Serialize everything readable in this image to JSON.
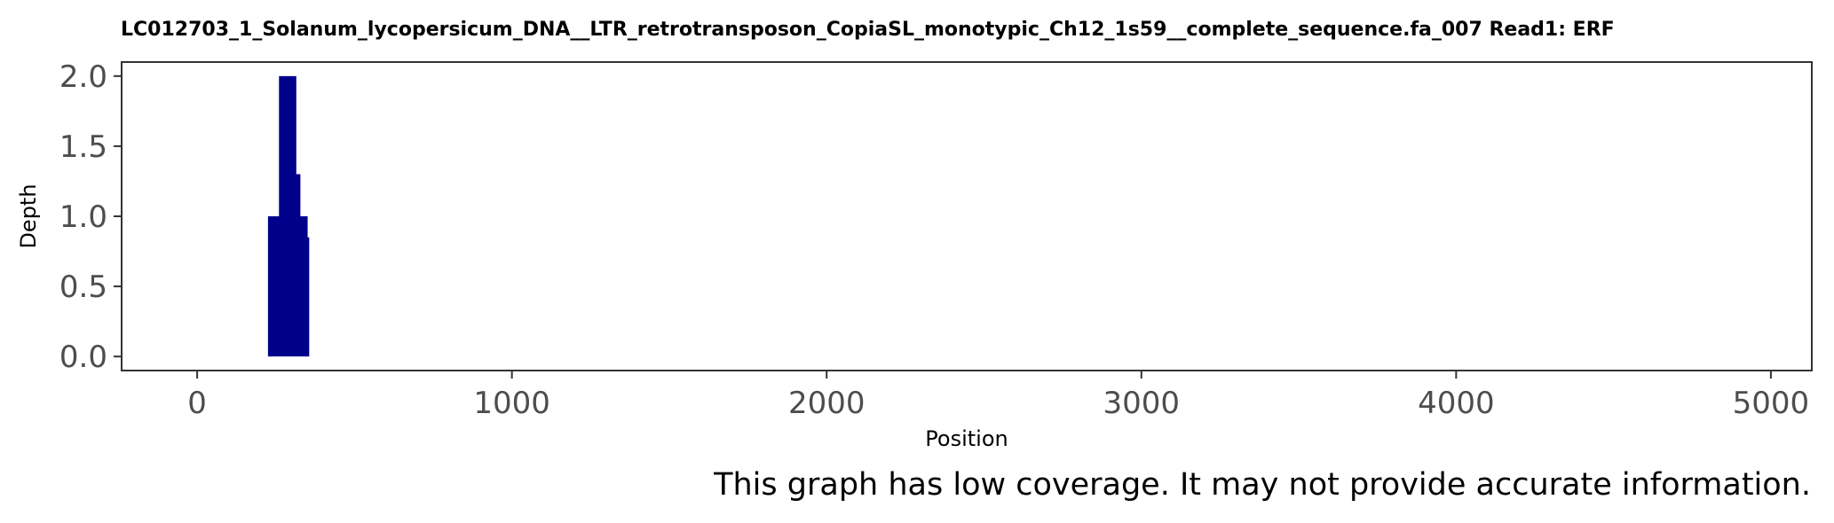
{
  "chart_data": {
    "type": "area",
    "title": "LC012703_1_Solanum_lycopersicum_DNA__LTR_retrotransposon_CopiaSL_monotypic_Ch12_1s59__complete_sequence.fa_007   Read1: ERF",
    "xlabel": "Position",
    "ylabel": "Depth",
    "xlim": [
      -240,
      5130
    ],
    "ylim": [
      -0.1,
      2.1
    ],
    "x_ticks": [
      "0",
      "1000",
      "2000",
      "3000",
      "4000",
      "5000"
    ],
    "y_ticks": [
      "0.0",
      "0.5",
      "1.0",
      "1.5",
      "2.0"
    ],
    "grid": false,
    "legend": "none",
    "color": "#00008b",
    "series": [
      {
        "x": [
          225,
          260,
          260,
          315,
          315,
          328,
          328,
          351,
          351,
          356
        ],
        "y": [
          1,
          1,
          2,
          2,
          1.3,
          1.3,
          1,
          1,
          0.85,
          0.85
        ]
      }
    ],
    "note": "This graph has low coverage. It may not provide accurate information."
  }
}
